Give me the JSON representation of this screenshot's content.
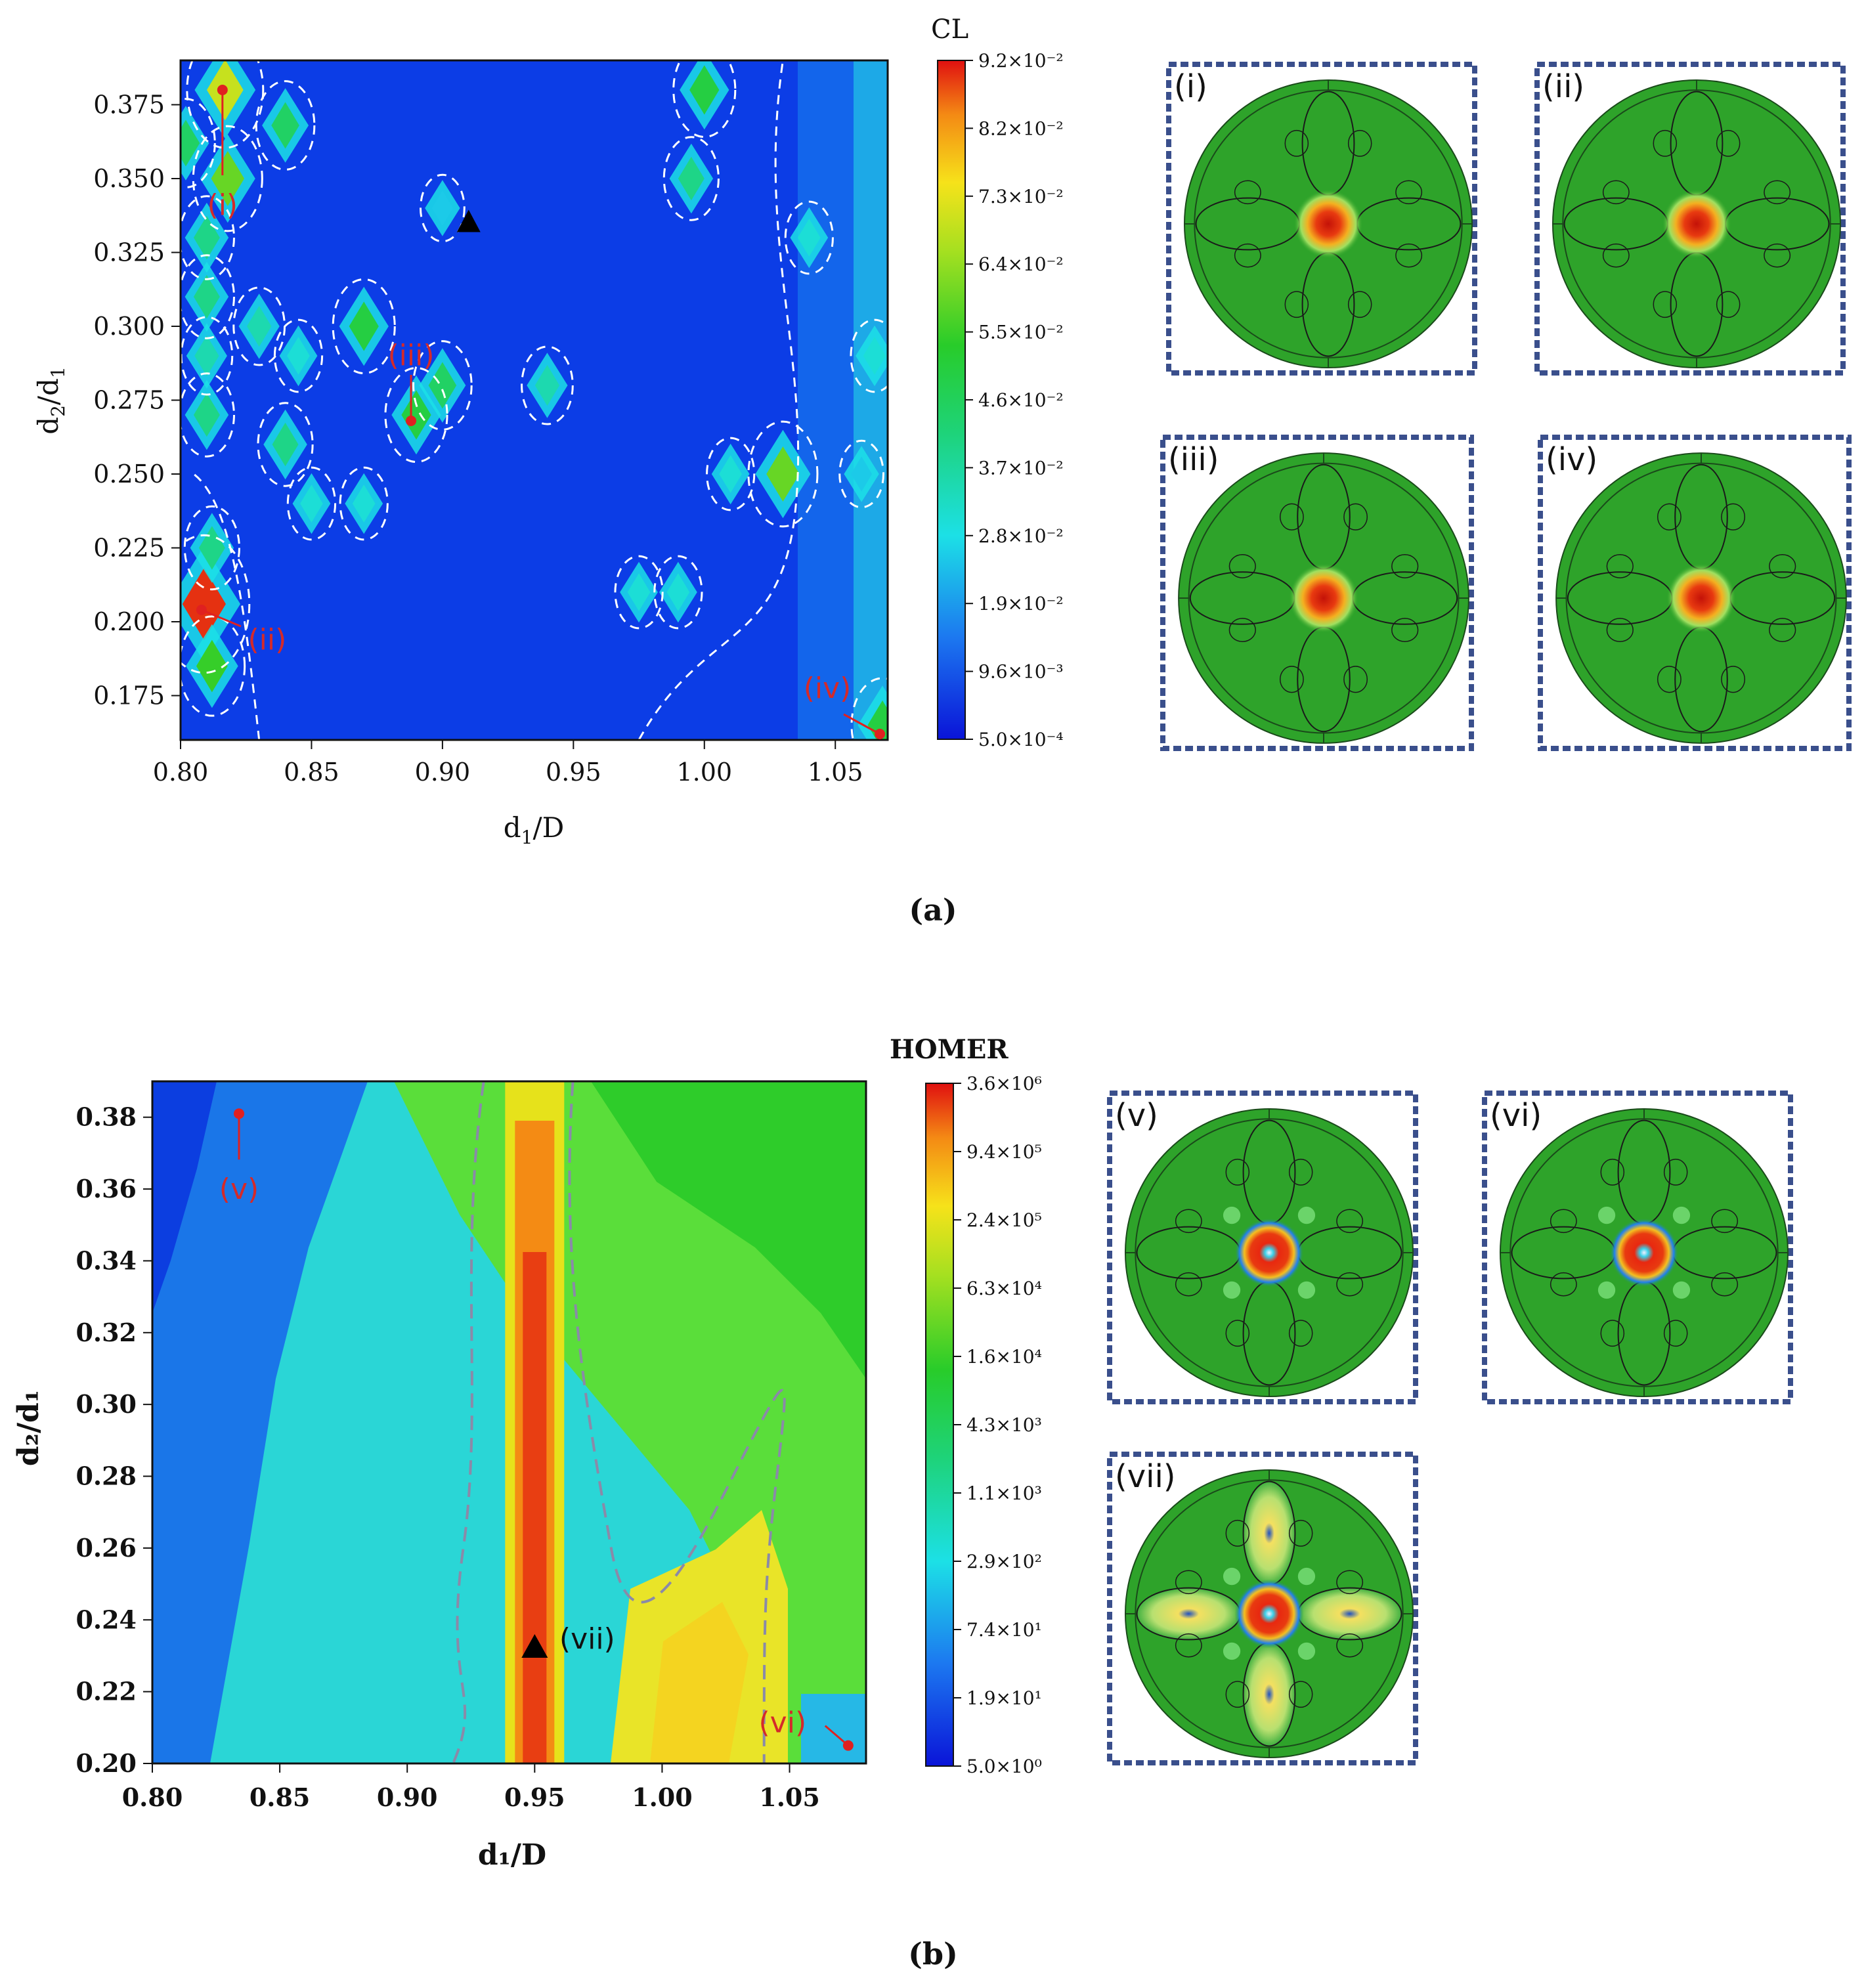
{
  "figure": {
    "caption_a": "(a)",
    "caption_b": "(b)"
  },
  "chart_data": [
    {
      "type": "heatmap",
      "panel": "a",
      "title": "",
      "xlabel": "d1/D",
      "ylabel": "d2/d1",
      "xlim": [
        0.8,
        1.07
      ],
      "ylim": [
        0.16,
        0.39
      ],
      "x_ticks": [
        0.8,
        0.85,
        0.9,
        0.95,
        1.0,
        1.05
      ],
      "x_tick_labels": [
        "0.80",
        "0.85",
        "0.90",
        "0.95",
        "1.00",
        "1.05"
      ],
      "y_ticks": [
        0.175,
        0.2,
        0.225,
        0.25,
        0.275,
        0.3,
        0.325,
        0.35,
        0.375
      ],
      "y_tick_labels": [
        "0.175",
        "0.200",
        "0.225",
        "0.250",
        "0.275",
        "0.300",
        "0.325",
        "0.350",
        "0.375"
      ],
      "colorbar": {
        "title": "CL",
        "scale": "linear",
        "tick_labels": [
          "9.2×10⁻²",
          "8.2×10⁻²",
          "7.3×10⁻²",
          "6.4×10⁻²",
          "5.5×10⁻²",
          "4.6×10⁻²",
          "3.7×10⁻²",
          "2.8×10⁻²",
          "1.9×10⁻²",
          "9.6×10⁻³",
          "5.0×10⁻⁴"
        ],
        "max": 0.092,
        "min": 0.0005
      },
      "background_value": 0.006,
      "hotspots": [
        {
          "x": 0.817,
          "y": 0.38,
          "value": 0.07
        },
        {
          "x": 0.802,
          "y": 0.362,
          "value": 0.045
        },
        {
          "x": 0.818,
          "y": 0.35,
          "value": 0.06
        },
        {
          "x": 0.84,
          "y": 0.368,
          "value": 0.045
        },
        {
          "x": 0.81,
          "y": 0.33,
          "value": 0.04
        },
        {
          "x": 0.81,
          "y": 0.31,
          "value": 0.04
        },
        {
          "x": 0.81,
          "y": 0.29,
          "value": 0.035
        },
        {
          "x": 0.81,
          "y": 0.27,
          "value": 0.04
        },
        {
          "x": 0.83,
          "y": 0.3,
          "value": 0.035
        },
        {
          "x": 0.84,
          "y": 0.26,
          "value": 0.04
        },
        {
          "x": 0.845,
          "y": 0.29,
          "value": 0.03
        },
        {
          "x": 0.87,
          "y": 0.3,
          "value": 0.05
        },
        {
          "x": 0.89,
          "y": 0.27,
          "value": 0.05
        },
        {
          "x": 0.9,
          "y": 0.28,
          "value": 0.045
        },
        {
          "x": 0.85,
          "y": 0.24,
          "value": 0.03
        },
        {
          "x": 0.87,
          "y": 0.24,
          "value": 0.03
        },
        {
          "x": 0.9,
          "y": 0.34,
          "value": 0.025
        },
        {
          "x": 0.94,
          "y": 0.28,
          "value": 0.035
        },
        {
          "x": 0.809,
          "y": 0.206,
          "value": 0.09
        },
        {
          "x": 0.812,
          "y": 0.185,
          "value": 0.055
        },
        {
          "x": 0.812,
          "y": 0.225,
          "value": 0.04
        },
        {
          "x": 0.975,
          "y": 0.21,
          "value": 0.03
        },
        {
          "x": 0.99,
          "y": 0.21,
          "value": 0.03
        },
        {
          "x": 1.0,
          "y": 0.38,
          "value": 0.05
        },
        {
          "x": 0.995,
          "y": 0.35,
          "value": 0.04
        },
        {
          "x": 1.01,
          "y": 0.25,
          "value": 0.03
        },
        {
          "x": 1.03,
          "y": 0.25,
          "value": 0.06
        },
        {
          "x": 1.04,
          "y": 0.33,
          "value": 0.03
        },
        {
          "x": 1.06,
          "y": 0.25,
          "value": 0.025
        },
        {
          "x": 1.065,
          "y": 0.29,
          "value": 0.03
        },
        {
          "x": 1.068,
          "y": 0.165,
          "value": 0.05
        }
      ],
      "optimum_marker": {
        "x": 0.91,
        "y": 0.335
      },
      "annotations": [
        {
          "label": "(i)",
          "x": 0.816,
          "y": 0.38
        },
        {
          "label": "(ii)",
          "x": 0.808,
          "y": 0.204
        },
        {
          "label": "(iii)",
          "x": 0.888,
          "y": 0.268
        },
        {
          "label": "(iv)",
          "x": 1.067,
          "y": 0.162
        }
      ]
    },
    {
      "type": "heatmap",
      "panel": "b",
      "title": "",
      "xlabel": "d₁/D",
      "ylabel": "d₂/d₁",
      "xlim": [
        0.8,
        1.08
      ],
      "ylim": [
        0.2,
        0.39
      ],
      "x_ticks": [
        0.8,
        0.85,
        0.9,
        0.95,
        1.0,
        1.05
      ],
      "x_tick_labels": [
        "0.80",
        "0.85",
        "0.90",
        "0.95",
        "1.00",
        "1.05"
      ],
      "y_ticks": [
        0.2,
        0.22,
        0.24,
        0.26,
        0.28,
        0.3,
        0.32,
        0.34,
        0.36,
        0.38
      ],
      "y_tick_labels": [
        "0.20",
        "0.22",
        "0.24",
        "0.26",
        "0.28",
        "0.30",
        "0.32",
        "0.34",
        "0.36",
        "0.38"
      ],
      "colorbar": {
        "title": "HOMER",
        "scale": "log",
        "tick_labels": [
          "3.6×10⁶",
          "9.4×10⁵",
          "2.4×10⁵",
          "6.3×10⁴",
          "1.6×10⁴",
          "4.3×10³",
          "1.1×10³",
          "2.9×10²",
          "7.4×10¹",
          "1.9×10¹",
          "5.0×10⁰"
        ],
        "max": 3600000,
        "min": 5.0
      },
      "ridge": {
        "x": 0.95,
        "value": 1200000
      },
      "optimum_marker": {
        "x": 0.95,
        "y": 0.232
      },
      "annotations": [
        {
          "label": "(v)",
          "x": 0.834,
          "y": 0.381
        },
        {
          "label": "(vi)",
          "x": 1.073,
          "y": 0.205
        },
        {
          "label": "(vii)",
          "x": 0.95,
          "y": 0.232
        }
      ]
    }
  ],
  "mode_insets": [
    {
      "label": "(i)",
      "lobes": false,
      "rings": false
    },
    {
      "label": "(ii)",
      "lobes": false,
      "rings": false
    },
    {
      "label": "(iii)",
      "lobes": false,
      "rings": false
    },
    {
      "label": "(iv)",
      "lobes": false,
      "rings": false
    },
    {
      "label": "(v)",
      "lobes": false,
      "rings": true
    },
    {
      "label": "(vi)",
      "lobes": false,
      "rings": true
    },
    {
      "label": "(vii)",
      "lobes": true,
      "rings": true
    }
  ],
  "colors": {
    "map_low": "#0a2fd8",
    "map_mid": "#1fcf3a",
    "map_high": "#d81a10",
    "mode_green": "#2ea32a",
    "inset_border": "#3a4f8c",
    "annotation_red": "#d42a2a"
  }
}
